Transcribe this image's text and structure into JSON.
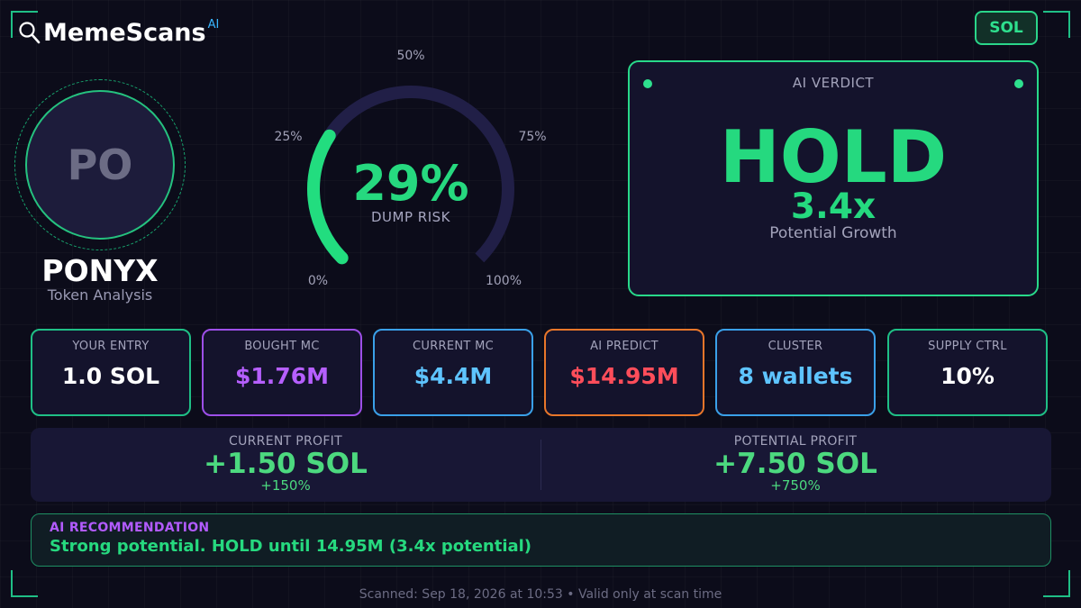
{
  "brand": {
    "name": "MemeScans",
    "sup": "AI",
    "icon": "magnifier-icon"
  },
  "chain_badge": "SOL",
  "token": {
    "initials": "PO",
    "name": "PONYX",
    "subtitle": "Token Analysis"
  },
  "gauge": {
    "value_text": "29%",
    "value": 29,
    "label": "DUMP RISK",
    "ticks": [
      "0%",
      "25%",
      "50%",
      "75%",
      "100%"
    ],
    "colors": {
      "fill": "#22dd7f",
      "track": "#211f47"
    }
  },
  "verdict": {
    "label": "AI VERDICT",
    "word": "HOLD",
    "multiplier": "3.4x",
    "subtitle": "Potential Growth"
  },
  "stats": [
    {
      "label": "YOUR ENTRY",
      "value": "1.0 SOL",
      "border": "#1fbf86",
      "color": "#ffffff"
    },
    {
      "label": "BOUGHT MC",
      "value": "$1.76M",
      "border": "#9d4fe8",
      "color": "#b65fff"
    },
    {
      "label": "CURRENT MC",
      "value": "$4.4M",
      "border": "#3aa0e8",
      "color": "#5ec4ff"
    },
    {
      "label": "AI PREDICT",
      "value": "$14.95M",
      "border": "#e8762a",
      "color": "#ff4d5a"
    },
    {
      "label": "CLUSTER",
      "value": "8 wallets",
      "border": "#3aa0e8",
      "color": "#5ec4ff"
    },
    {
      "label": "SUPPLY CTRL",
      "value": "10%",
      "border": "#1fbf86",
      "color": "#ffffff"
    }
  ],
  "profit": {
    "current": {
      "label": "CURRENT PROFIT",
      "value": "+1.50 SOL",
      "pct": "+150%"
    },
    "potential": {
      "label": "POTENTIAL PROFIT",
      "value": "+7.50 SOL",
      "pct": "+750%"
    }
  },
  "recommendation": {
    "label": "AI RECOMMENDATION",
    "text": "Strong potential. HOLD until 14.95M (3.4x potential)"
  },
  "footer": "Scanned: Sep 18, 2026 at 10:53  •  Valid only at scan time"
}
